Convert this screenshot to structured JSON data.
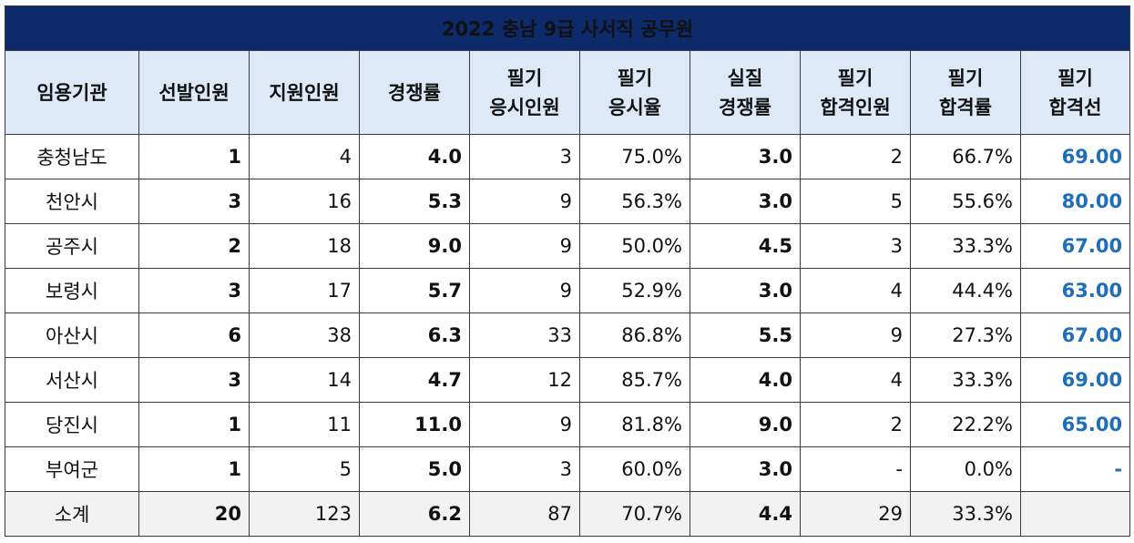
{
  "title": "2022 충남 9급 사서직  공무원",
  "headers": [
    [
      "임용기관"
    ],
    [
      "선발인원"
    ],
    [
      "지원인원"
    ],
    [
      "경쟁률"
    ],
    [
      "필기",
      "응시인원"
    ],
    [
      "필기",
      "응시율"
    ],
    [
      "실질",
      "경쟁률"
    ],
    [
      "필기",
      "합격인원"
    ],
    [
      "필기",
      "합격률"
    ],
    [
      "필기",
      "합격선"
    ]
  ],
  "rows": [
    [
      "충청남도",
      "1",
      "4",
      "4.0",
      "3",
      "75.0%",
      "3.0",
      "2",
      "66.7%",
      "69.00"
    ],
    [
      "천안시",
      "3",
      "16",
      "5.3",
      "9",
      "56.3%",
      "3.0",
      "5",
      "55.6%",
      "80.00"
    ],
    [
      "공주시",
      "2",
      "18",
      "9.0",
      "9",
      "50.0%",
      "4.5",
      "3",
      "33.3%",
      "67.00"
    ],
    [
      "보령시",
      "3",
      "17",
      "5.7",
      "9",
      "52.9%",
      "3.0",
      "4",
      "44.4%",
      "63.00"
    ],
    [
      "아산시",
      "6",
      "38",
      "6.3",
      "33",
      "86.8%",
      "5.5",
      "9",
      "27.3%",
      "67.00"
    ],
    [
      "서산시",
      "3",
      "14",
      "4.7",
      "12",
      "85.7%",
      "4.0",
      "4",
      "33.3%",
      "69.00"
    ],
    [
      "당진시",
      "1",
      "11",
      "11.0",
      "9",
      "81.8%",
      "9.0",
      "2",
      "22.2%",
      "65.00"
    ],
    [
      "부여군",
      "1",
      "5",
      "5.0",
      "3",
      "60.0%",
      "3.0",
      "-",
      "0.0%",
      "-"
    ]
  ],
  "total": [
    "소계",
    "20",
    "123",
    "6.2",
    "87",
    "70.7%",
    "4.4",
    "29",
    "33.3%",
    ""
  ],
  "colors": {
    "title_bg": "#0d2a6b",
    "header_bg": "#dde9f6",
    "total_bg": "#f2f2f2",
    "cutoff_text": "#1f6fb8"
  }
}
